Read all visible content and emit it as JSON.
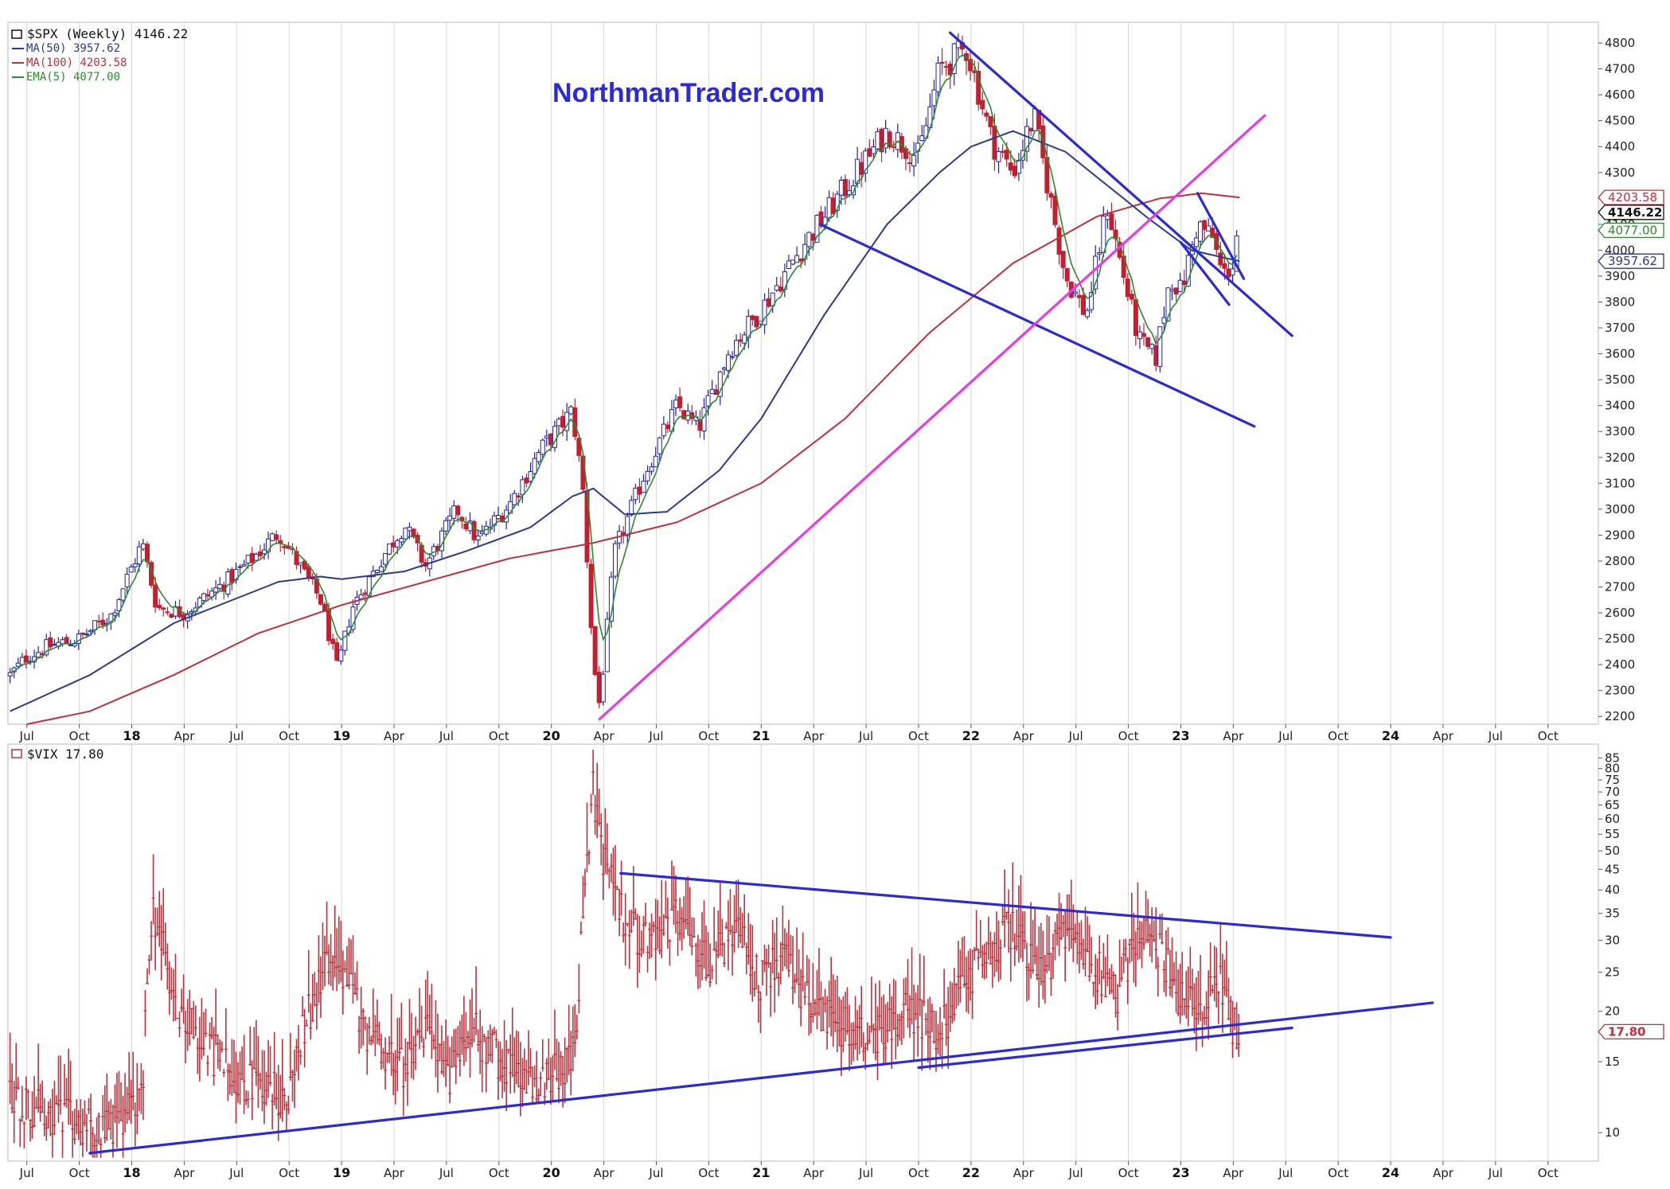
{
  "watermark": "NorthmanTrader.com",
  "colors": {
    "trend": "#2a2ad8",
    "magenta": "#e040e0",
    "ma50": "#2b3a8f",
    "ma100": "#c0303a",
    "ema5": "#2d8a2d",
    "up": "#2020b0",
    "down": "#c02030",
    "vix": "#c0303a",
    "grid": "#d8d8d8"
  },
  "chart_data": [
    {
      "type": "candlestick",
      "legend": {
        "title": "$SPX (Weekly) 4146.22",
        "items": [
          {
            "label": "MA(50) 3957.62",
            "color": "#2b3a8f"
          },
          {
            "label": "MA(100) 4203.58",
            "color": "#c0303a"
          },
          {
            "label": "EMA(5) 4077.00",
            "color": "#2d8a2d"
          }
        ]
      },
      "x_ticks": [
        "Jul",
        "Oct",
        "18",
        "Apr",
        "Jul",
        "Oct",
        "19",
        "Apr",
        "Jul",
        "Oct",
        "20",
        "Apr",
        "Jul",
        "Oct",
        "21",
        "Apr",
        "Jul",
        "Oct",
        "22",
        "Apr",
        "Jul",
        "Oct",
        "23",
        "Apr",
        "Jul",
        "Oct",
        "24",
        "Apr",
        "Jul",
        "Oct"
      ],
      "x_range": [
        2017.41,
        2024.99
      ],
      "ylim": [
        2170,
        4880
      ],
      "y_ticks": [
        "4800",
        "4700",
        "4600",
        "4500",
        "4400",
        "4300",
        "4200",
        "4100",
        "4000",
        "3900",
        "3800",
        "3700",
        "3600",
        "3500",
        "3400",
        "3300",
        "3200",
        "3100",
        "3000",
        "2900",
        "2800",
        "2700",
        "2600",
        "2500",
        "2400",
        "2300",
        "2200"
      ],
      "value_tags": [
        {
          "label": "4203.58",
          "value": 4203.58,
          "color": "#c0303a",
          "bold": false
        },
        {
          "label": "4146.22",
          "value": 4146.22,
          "color": "#111111",
          "bold": true
        },
        {
          "label": "4077.00",
          "value": 4077.0,
          "color": "#2d8a2d",
          "bold": false
        },
        {
          "label": "3957.62",
          "value": 3957.62,
          "color": "#2b3a8f",
          "bold": false
        }
      ],
      "price_path": [
        [
          2017.42,
          2360
        ],
        [
          2017.5,
          2430
        ],
        [
          2017.6,
          2470
        ],
        [
          2017.75,
          2500
        ],
        [
          2017.9,
          2590
        ],
        [
          2018.05,
          2870
        ],
        [
          2018.12,
          2620
        ],
        [
          2018.25,
          2600
        ],
        [
          2018.45,
          2720
        ],
        [
          2018.55,
          2790
        ],
        [
          2018.7,
          2910
        ],
        [
          2018.8,
          2780
        ],
        [
          2018.9,
          2650
        ],
        [
          2018.98,
          2380
        ],
        [
          2019.05,
          2620
        ],
        [
          2019.2,
          2820
        ],
        [
          2019.3,
          2940
        ],
        [
          2019.4,
          2780
        ],
        [
          2019.55,
          3000
        ],
        [
          2019.65,
          2880
        ],
        [
          2019.8,
          3020
        ],
        [
          2019.95,
          3230
        ],
        [
          2020.1,
          3380
        ],
        [
          2020.15,
          3080
        ],
        [
          2020.2,
          2410
        ],
        [
          2020.23,
          2240
        ],
        [
          2020.3,
          2830
        ],
        [
          2020.45,
          3150
        ],
        [
          2020.6,
          3400
        ],
        [
          2020.7,
          3310
        ],
        [
          2020.85,
          3620
        ],
        [
          2021.0,
          3770
        ],
        [
          2021.2,
          4020
        ],
        [
          2021.4,
          4240
        ],
        [
          2021.6,
          4460
        ],
        [
          2021.75,
          4360
        ],
        [
          2021.85,
          4700
        ],
        [
          2021.98,
          4780
        ],
        [
          2022.1,
          4420
        ],
        [
          2022.2,
          4300
        ],
        [
          2022.3,
          4520
        ],
        [
          2022.45,
          3900
        ],
        [
          2022.55,
          3750
        ],
        [
          2022.65,
          4170
        ],
        [
          2022.8,
          3650
        ],
        [
          2022.88,
          3580
        ],
        [
          2022.95,
          3900
        ],
        [
          2023.0,
          3840
        ],
        [
          2023.08,
          4100
        ],
        [
          2023.15,
          4050
        ],
        [
          2023.2,
          3900
        ],
        [
          2023.25,
          3950
        ],
        [
          2023.28,
          4146
        ]
      ],
      "ma50_path": [
        [
          2017.42,
          2220
        ],
        [
          2017.8,
          2360
        ],
        [
          2018.2,
          2560
        ],
        [
          2018.7,
          2720
        ],
        [
          2018.9,
          2740
        ],
        [
          2019.0,
          2730
        ],
        [
          2019.3,
          2760
        ],
        [
          2019.6,
          2840
        ],
        [
          2019.9,
          2930
        ],
        [
          2020.1,
          3050
        ],
        [
          2020.2,
          3080
        ],
        [
          2020.35,
          2980
        ],
        [
          2020.55,
          2990
        ],
        [
          2020.8,
          3150
        ],
        [
          2021.0,
          3350
        ],
        [
          2021.3,
          3750
        ],
        [
          2021.6,
          4100
        ],
        [
          2021.85,
          4300
        ],
        [
          2022.0,
          4400
        ],
        [
          2022.2,
          4460
        ],
        [
          2022.45,
          4380
        ],
        [
          2022.65,
          4250
        ],
        [
          2022.85,
          4120
        ],
        [
          2023.05,
          4000
        ],
        [
          2023.28,
          3957.62
        ]
      ],
      "ma100_path": [
        [
          2017.5,
          2170
        ],
        [
          2017.8,
          2220
        ],
        [
          2018.2,
          2360
        ],
        [
          2018.6,
          2520
        ],
        [
          2019.0,
          2630
        ],
        [
          2019.4,
          2720
        ],
        [
          2019.8,
          2810
        ],
        [
          2020.2,
          2870
        ],
        [
          2020.6,
          2950
        ],
        [
          2021.0,
          3100
        ],
        [
          2021.4,
          3350
        ],
        [
          2021.8,
          3680
        ],
        [
          2022.2,
          3950
        ],
        [
          2022.6,
          4130
        ],
        [
          2022.9,
          4200
        ],
        [
          2023.1,
          4220
        ],
        [
          2023.28,
          4203.58
        ]
      ],
      "trendlines": [
        {
          "color": "#2a2ad8",
          "points": [
            [
              2021.9,
              4840
            ],
            [
              2023.53,
              3670
            ]
          ]
        },
        {
          "color": "#2a2ad8",
          "points": [
            [
              2021.28,
              4100
            ],
            [
              2023.35,
              3320
            ]
          ]
        },
        {
          "color": "#2a2ad8",
          "points": [
            [
              2023.08,
              4220
            ],
            [
              2023.3,
              3890
            ]
          ]
        },
        {
          "color": "#2a2ad8",
          "points": [
            [
              2023.0,
              4030
            ],
            [
              2023.23,
              3790
            ]
          ]
        },
        {
          "color": "#e040e0",
          "points": [
            [
              2020.23,
              2190
            ],
            [
              2023.4,
              4520
            ]
          ]
        }
      ]
    },
    {
      "type": "bar",
      "legend": {
        "title": "$VIX 17.80"
      },
      "x_ticks": [
        "Jul",
        "Oct",
        "18",
        "Apr",
        "Jul",
        "Oct",
        "19",
        "Apr",
        "Jul",
        "Oct",
        "20",
        "Apr",
        "Jul",
        "Oct",
        "21",
        "Apr",
        "Jul",
        "Oct",
        "22",
        "Apr",
        "Jul",
        "Oct",
        "23",
        "Apr",
        "Jul",
        "Oct",
        "24",
        "Apr",
        "Jul",
        "Oct"
      ],
      "x_range": [
        2017.41,
        2024.99
      ],
      "ylim": [
        8.5,
        92
      ],
      "log_scale": true,
      "y_ticks": [
        "85",
        "80",
        "75",
        "70",
        "65",
        "60",
        "55",
        "50",
        "45",
        "40",
        "35",
        "30",
        "25",
        "20",
        "15",
        "10"
      ],
      "value_tags": [
        {
          "label": "17.80",
          "value": 17.8,
          "color": "#c0303a",
          "bold": true
        }
      ],
      "vix_path": [
        [
          2017.42,
          12
        ],
        [
          2017.6,
          11
        ],
        [
          2017.8,
          10
        ],
        [
          2017.95,
          10.5
        ],
        [
          2018.05,
          12
        ],
        [
          2018.1,
          35
        ],
        [
          2018.2,
          20
        ],
        [
          2018.35,
          16
        ],
        [
          2018.55,
          13
        ],
        [
          2018.75,
          12
        ],
        [
          2018.85,
          20
        ],
        [
          2018.97,
          28
        ],
        [
          2019.1,
          18
        ],
        [
          2019.3,
          14
        ],
        [
          2019.42,
          18
        ],
        [
          2019.5,
          13
        ],
        [
          2019.6,
          18
        ],
        [
          2019.8,
          14
        ],
        [
          2019.95,
          13
        ],
        [
          2020.05,
          14
        ],
        [
          2020.12,
          16
        ],
        [
          2020.16,
          40
        ],
        [
          2020.2,
          70
        ],
        [
          2020.25,
          45
        ],
        [
          2020.35,
          32
        ],
        [
          2020.5,
          28
        ],
        [
          2020.6,
          34
        ],
        [
          2020.75,
          26
        ],
        [
          2020.9,
          30
        ],
        [
          2021.0,
          23
        ],
        [
          2021.1,
          27
        ],
        [
          2021.25,
          19
        ],
        [
          2021.4,
          18
        ],
        [
          2021.55,
          17
        ],
        [
          2021.7,
          20
        ],
        [
          2021.85,
          17
        ],
        [
          2021.95,
          22
        ],
        [
          2022.1,
          28
        ],
        [
          2022.2,
          32
        ],
        [
          2022.35,
          24
        ],
        [
          2022.45,
          31
        ],
        [
          2022.6,
          25
        ],
        [
          2022.7,
          22
        ],
        [
          2022.8,
          30
        ],
        [
          2022.9,
          28
        ],
        [
          2023.0,
          21
        ],
        [
          2023.1,
          19
        ],
        [
          2023.18,
          24
        ],
        [
          2023.25,
          18
        ],
        [
          2023.28,
          17.8
        ]
      ],
      "trendlines": [
        {
          "color": "#2a2ad8",
          "points": [
            [
              2020.33,
              44
            ],
            [
              2024.0,
              30.5
            ]
          ]
        },
        {
          "color": "#2a2ad8",
          "points": [
            [
              2017.8,
              8.9
            ],
            [
              2024.2,
              21
            ]
          ]
        },
        {
          "color": "#2a2ad8",
          "points": [
            [
              2021.75,
              14.5
            ],
            [
              2023.53,
              18.2
            ]
          ]
        }
      ]
    }
  ]
}
